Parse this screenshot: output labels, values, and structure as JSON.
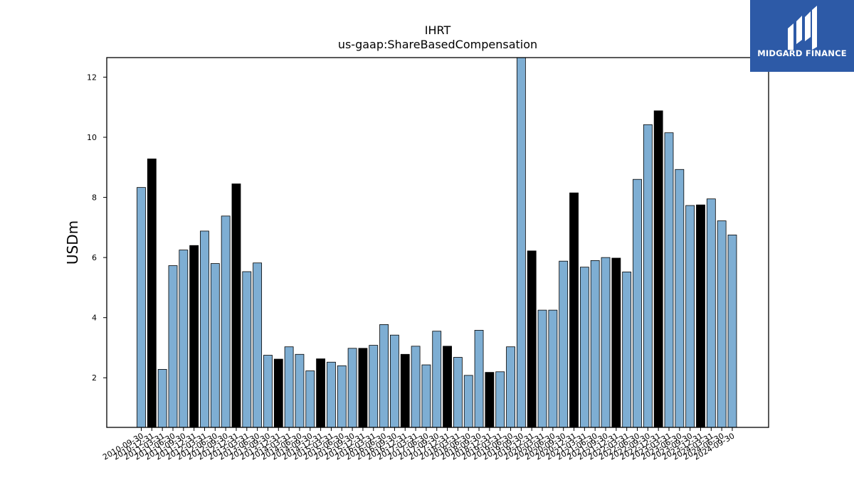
{
  "brand": {
    "name": "MIDGARD FINANCE",
    "icon": "midgard-logo-icon"
  },
  "chart_data": {
    "type": "bar",
    "title": "IHRT",
    "subtitle": "us-gaap:ShareBasedCompensation",
    "ylabel": "USDm",
    "xlabel": "",
    "ylim": [
      0.35,
      12.65
    ],
    "yticks": [
      2,
      4,
      6,
      8,
      10,
      12
    ],
    "grid": false,
    "colors": {
      "quarterly": "#7eaed3",
      "annual": "#000000",
      "edge": "#000000"
    },
    "categories": [
      "2010-09-30",
      "2010-12-31",
      "2011-03-31",
      "2011-06-30",
      "2011-09-30",
      "2011-12-31",
      "2012-03-31",
      "2012-06-30",
      "2012-09-30",
      "2012-12-31",
      "2013-03-31",
      "2013-06-30",
      "2013-09-30",
      "2013-12-31",
      "2014-03-31",
      "2014-06-30",
      "2014-09-30",
      "2014-12-31",
      "2015-03-31",
      "2015-06-30",
      "2015-09-30",
      "2015-12-31",
      "2016-03-31",
      "2016-06-30",
      "2016-09-30",
      "2016-12-31",
      "2017-03-31",
      "2017-06-30",
      "2017-09-30",
      "2017-12-31",
      "2018-03-31",
      "2018-06-30",
      "2018-09-30",
      "2018-12-31",
      "2019-03-31",
      "2019-06-30",
      "2019-09-30",
      "2019-12-31",
      "2020-03-31",
      "2020-06-30",
      "2020-09-30",
      "2020-12-31",
      "2021-03-31",
      "2021-06-30",
      "2021-09-30",
      "2021-12-31",
      "2022-03-31",
      "2022-06-30",
      "2022-09-30",
      "2022-12-31",
      "2023-03-31",
      "2023-06-30",
      "2023-09-30",
      "2023-12-31",
      "2024-03-31",
      "2024-06-30",
      "2024-09-30"
    ],
    "values": [
      8.33,
      9.28,
      2.28,
      5.73,
      6.25,
      6.4,
      6.88,
      5.8,
      7.38,
      8.45,
      5.53,
      5.82,
      2.75,
      2.62,
      3.03,
      2.78,
      2.23,
      2.63,
      2.52,
      2.4,
      2.98,
      2.98,
      3.08,
      3.77,
      3.42,
      2.78,
      3.05,
      2.43,
      3.55,
      3.05,
      2.68,
      2.08,
      3.58,
      2.18,
      2.2,
      3.03,
      12.65,
      6.22,
      4.25,
      4.25,
      5.88,
      8.15,
      5.68,
      5.9,
      6.0,
      5.98,
      5.52,
      8.6,
      10.42,
      10.88,
      10.15,
      8.93,
      7.73,
      7.75,
      7.95,
      7.22,
      6.75
    ],
    "annual": [
      false,
      true,
      false,
      false,
      false,
      true,
      false,
      false,
      false,
      true,
      false,
      false,
      false,
      true,
      false,
      false,
      false,
      true,
      false,
      false,
      false,
      true,
      false,
      false,
      false,
      true,
      false,
      false,
      false,
      true,
      false,
      false,
      false,
      true,
      false,
      false,
      false,
      true,
      false,
      false,
      false,
      true,
      false,
      false,
      false,
      true,
      false,
      false,
      false,
      true,
      false,
      false,
      false,
      true,
      false,
      false,
      false
    ]
  }
}
